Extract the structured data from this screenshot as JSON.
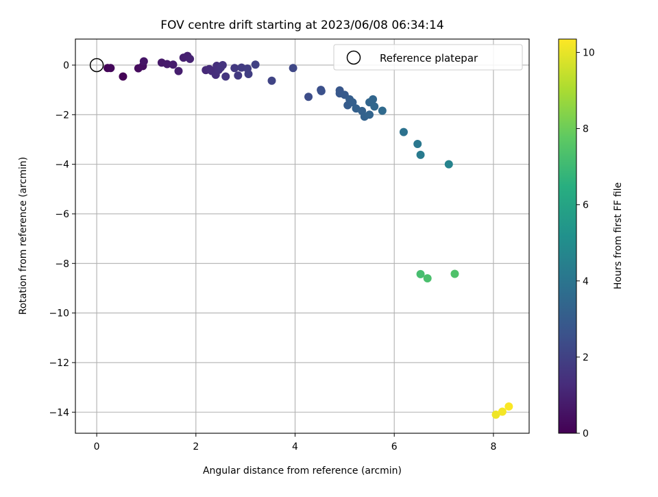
{
  "chart_data": {
    "type": "scatter",
    "title": "FOV centre drift starting at 2023/06/08 06:34:14",
    "xlabel": "Angular distance from reference (arcmin)",
    "ylabel": "Rotation from reference (arcmin)",
    "xlim": [
      -0.43,
      8.72
    ],
    "ylim": [
      -14.85,
      1.05
    ],
    "xticks": [
      0,
      2,
      4,
      6,
      8
    ],
    "yticks": [
      0,
      -2,
      -4,
      -6,
      -8,
      -10,
      -12,
      -14
    ],
    "grid": true,
    "legend": {
      "position": "top-right",
      "entries": [
        "Reference platepar"
      ]
    },
    "colorbar": {
      "label": "Hours from first FF file",
      "range": [
        0,
        10.35
      ],
      "ticks": [
        0,
        2,
        4,
        6,
        8,
        10
      ],
      "colormap": "viridis"
    },
    "reference_point": {
      "x": 0,
      "y": 0
    },
    "points": [
      {
        "x": 0.22,
        "y": -0.12,
        "h": 0.1
      },
      {
        "x": 0.28,
        "y": -0.12,
        "h": 0.2
      },
      {
        "x": 0.53,
        "y": -0.46,
        "h": 0.05
      },
      {
        "x": 0.84,
        "y": -0.13,
        "h": 0.3
      },
      {
        "x": 0.93,
        "y": -0.04,
        "h": 0.4
      },
      {
        "x": 0.95,
        "y": 0.15,
        "h": 0.6
      },
      {
        "x": 1.31,
        "y": 0.1,
        "h": 0.7
      },
      {
        "x": 1.42,
        "y": 0.04,
        "h": 0.75
      },
      {
        "x": 1.54,
        "y": 0.02,
        "h": 0.8
      },
      {
        "x": 1.65,
        "y": -0.24,
        "h": 0.85
      },
      {
        "x": 1.75,
        "y": 0.3,
        "h": 0.9
      },
      {
        "x": 1.83,
        "y": 0.37,
        "h": 0.95
      },
      {
        "x": 1.88,
        "y": 0.25,
        "h": 1.0
      },
      {
        "x": 2.2,
        "y": -0.2,
        "h": 1.2
      },
      {
        "x": 2.27,
        "y": -0.16,
        "h": 1.25
      },
      {
        "x": 2.32,
        "y": -0.24,
        "h": 1.3
      },
      {
        "x": 2.4,
        "y": -0.39,
        "h": 1.35
      },
      {
        "x": 2.42,
        "y": -0.03,
        "h": 1.4
      },
      {
        "x": 2.46,
        "y": -0.19,
        "h": 1.45
      },
      {
        "x": 2.5,
        "y": -0.1,
        "h": 1.5
      },
      {
        "x": 2.54,
        "y": 0.0,
        "h": 1.55
      },
      {
        "x": 2.6,
        "y": -0.46,
        "h": 1.6
      },
      {
        "x": 2.78,
        "y": -0.12,
        "h": 1.7
      },
      {
        "x": 2.85,
        "y": -0.42,
        "h": 1.75
      },
      {
        "x": 2.92,
        "y": -0.1,
        "h": 1.8
      },
      {
        "x": 3.04,
        "y": -0.14,
        "h": 1.85
      },
      {
        "x": 3.06,
        "y": -0.36,
        "h": 1.9
      },
      {
        "x": 3.2,
        "y": 0.02,
        "h": 1.95
      },
      {
        "x": 3.53,
        "y": -0.63,
        "h": 2.1
      },
      {
        "x": 3.96,
        "y": -0.12,
        "h": 2.2
      },
      {
        "x": 4.27,
        "y": -1.28,
        "h": 2.4
      },
      {
        "x": 4.52,
        "y": -1.0,
        "h": 2.5
      },
      {
        "x": 4.53,
        "y": -1.05,
        "h": 2.55
      },
      {
        "x": 4.9,
        "y": -1.02,
        "h": 2.8
      },
      {
        "x": 4.9,
        "y": -1.14,
        "h": 2.85
      },
      {
        "x": 5.0,
        "y": -1.2,
        "h": 2.9
      },
      {
        "x": 5.06,
        "y": -1.62,
        "h": 3.0
      },
      {
        "x": 5.1,
        "y": -1.38,
        "h": 3.05
      },
      {
        "x": 5.16,
        "y": -1.5,
        "h": 3.1
      },
      {
        "x": 5.23,
        "y": -1.75,
        "h": 3.15
      },
      {
        "x": 5.35,
        "y": -1.85,
        "h": 3.2
      },
      {
        "x": 5.4,
        "y": -2.08,
        "h": 3.25
      },
      {
        "x": 5.5,
        "y": -2.0,
        "h": 3.3
      },
      {
        "x": 5.5,
        "y": -1.5,
        "h": 3.35
      },
      {
        "x": 5.57,
        "y": -1.38,
        "h": 3.4
      },
      {
        "x": 5.6,
        "y": -1.67,
        "h": 3.45
      },
      {
        "x": 5.76,
        "y": -1.84,
        "h": 3.55
      },
      {
        "x": 6.19,
        "y": -2.7,
        "h": 3.9
      },
      {
        "x": 6.47,
        "y": -3.18,
        "h": 4.1
      },
      {
        "x": 6.53,
        "y": -3.62,
        "h": 4.2
      },
      {
        "x": 7.1,
        "y": -4.0,
        "h": 4.6
      },
      {
        "x": 6.53,
        "y": -8.43,
        "h": 7.2
      },
      {
        "x": 6.67,
        "y": -8.6,
        "h": 7.3
      },
      {
        "x": 7.22,
        "y": -8.42,
        "h": 7.4
      },
      {
        "x": 8.05,
        "y": -14.1,
        "h": 10.1
      },
      {
        "x": 8.18,
        "y": -13.98,
        "h": 10.2
      },
      {
        "x": 8.31,
        "y": -13.77,
        "h": 10.3
      }
    ]
  }
}
